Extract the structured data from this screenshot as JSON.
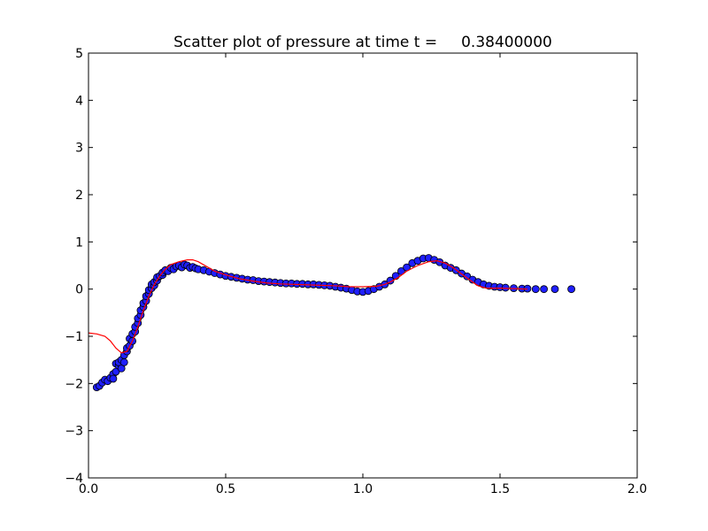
{
  "chart_data": {
    "type": "scatter",
    "title": "Scatter plot of pressure at time t =     0.38400000",
    "xlabel": "",
    "ylabel": "",
    "xlim": [
      0.0,
      2.0
    ],
    "ylim": [
      -4,
      5
    ],
    "x_ticks": [
      0.0,
      0.5,
      1.0,
      1.5,
      2.0
    ],
    "x_tick_labels": [
      "0.0",
      "0.5",
      "1.0",
      "1.5",
      "2.0"
    ],
    "y_ticks": [
      -4,
      -3,
      -2,
      -1,
      0,
      1,
      2,
      3,
      4,
      5
    ],
    "y_tick_labels": [
      "−4",
      "−3",
      "−2",
      "−1",
      "0",
      "1",
      "2",
      "3",
      "4",
      "5"
    ],
    "grid": false,
    "legend": "none",
    "colors": {
      "points_fill": "#1f1fff",
      "points_edge": "#000000",
      "line": "#ff0000"
    },
    "series": [
      {
        "kind": "scatter",
        "points": [
          [
            0.03,
            -2.08
          ],
          [
            0.04,
            -2.05
          ],
          [
            0.05,
            -1.98
          ],
          [
            0.06,
            -1.92
          ],
          [
            0.07,
            -1.95
          ],
          [
            0.08,
            -1.88
          ],
          [
            0.09,
            -1.8
          ],
          [
            0.09,
            -1.9
          ],
          [
            0.1,
            -1.75
          ],
          [
            0.1,
            -1.58
          ],
          [
            0.11,
            -1.62
          ],
          [
            0.11,
            -1.55
          ],
          [
            0.12,
            -1.68
          ],
          [
            0.12,
            -1.5
          ],
          [
            0.13,
            -1.4
          ],
          [
            0.13,
            -1.55
          ],
          [
            0.14,
            -1.32
          ],
          [
            0.14,
            -1.25
          ],
          [
            0.15,
            -1.2
          ],
          [
            0.15,
            -1.05
          ],
          [
            0.16,
            -1.1
          ],
          [
            0.16,
            -0.95
          ],
          [
            0.17,
            -0.9
          ],
          [
            0.17,
            -0.8
          ],
          [
            0.18,
            -0.72
          ],
          [
            0.18,
            -0.62
          ],
          [
            0.19,
            -0.55
          ],
          [
            0.19,
            -0.45
          ],
          [
            0.2,
            -0.38
          ],
          [
            0.2,
            -0.3
          ],
          [
            0.21,
            -0.25
          ],
          [
            0.21,
            -0.15
          ],
          [
            0.22,
            -0.1
          ],
          [
            0.22,
            -0.02
          ],
          [
            0.23,
            0.02
          ],
          [
            0.23,
            0.1
          ],
          [
            0.24,
            0.08
          ],
          [
            0.24,
            0.15
          ],
          [
            0.25,
            0.18
          ],
          [
            0.25,
            0.25
          ],
          [
            0.26,
            0.28
          ],
          [
            0.27,
            0.3
          ],
          [
            0.27,
            0.35
          ],
          [
            0.28,
            0.4
          ],
          [
            0.29,
            0.38
          ],
          [
            0.3,
            0.45
          ],
          [
            0.31,
            0.42
          ],
          [
            0.32,
            0.48
          ],
          [
            0.33,
            0.5
          ],
          [
            0.34,
            0.46
          ],
          [
            0.35,
            0.52
          ],
          [
            0.36,
            0.5
          ],
          [
            0.37,
            0.45
          ],
          [
            0.38,
            0.47
          ],
          [
            0.39,
            0.44
          ],
          [
            0.4,
            0.42
          ],
          [
            0.42,
            0.4
          ],
          [
            0.44,
            0.37
          ],
          [
            0.46,
            0.34
          ],
          [
            0.48,
            0.31
          ],
          [
            0.5,
            0.28
          ],
          [
            0.52,
            0.26
          ],
          [
            0.54,
            0.24
          ],
          [
            0.56,
            0.22
          ],
          [
            0.58,
            0.2
          ],
          [
            0.6,
            0.19
          ],
          [
            0.62,
            0.17
          ],
          [
            0.64,
            0.16
          ],
          [
            0.66,
            0.15
          ],
          [
            0.68,
            0.14
          ],
          [
            0.7,
            0.13
          ],
          [
            0.72,
            0.12
          ],
          [
            0.74,
            0.12
          ],
          [
            0.76,
            0.11
          ],
          [
            0.78,
            0.11
          ],
          [
            0.8,
            0.1
          ],
          [
            0.82,
            0.1
          ],
          [
            0.84,
            0.09
          ],
          [
            0.86,
            0.08
          ],
          [
            0.88,
            0.07
          ],
          [
            0.9,
            0.05
          ],
          [
            0.92,
            0.03
          ],
          [
            0.94,
            0.01
          ],
          [
            0.96,
            -0.02
          ],
          [
            0.98,
            -0.05
          ],
          [
            1.0,
            -0.06
          ],
          [
            1.02,
            -0.04
          ],
          [
            1.04,
            0.0
          ],
          [
            1.06,
            0.05
          ],
          [
            1.08,
            0.1
          ],
          [
            1.1,
            0.18
          ],
          [
            1.12,
            0.28
          ],
          [
            1.14,
            0.38
          ],
          [
            1.16,
            0.46
          ],
          [
            1.18,
            0.55
          ],
          [
            1.2,
            0.6
          ],
          [
            1.22,
            0.65
          ],
          [
            1.24,
            0.66
          ],
          [
            1.26,
            0.62
          ],
          [
            1.28,
            0.57
          ],
          [
            1.3,
            0.5
          ],
          [
            1.32,
            0.45
          ],
          [
            1.34,
            0.4
          ],
          [
            1.36,
            0.33
          ],
          [
            1.38,
            0.27
          ],
          [
            1.4,
            0.2
          ],
          [
            1.42,
            0.15
          ],
          [
            1.44,
            0.1
          ],
          [
            1.46,
            0.07
          ],
          [
            1.48,
            0.05
          ],
          [
            1.5,
            0.04
          ],
          [
            1.52,
            0.03
          ],
          [
            1.55,
            0.02
          ],
          [
            1.58,
            0.01
          ],
          [
            1.6,
            0.01
          ],
          [
            1.63,
            0.0
          ],
          [
            1.66,
            0.0
          ],
          [
            1.7,
            0.0
          ],
          [
            1.76,
            0.0
          ]
        ]
      },
      {
        "kind": "line",
        "points": [
          [
            0.0,
            -0.93
          ],
          [
            0.03,
            -0.95
          ],
          [
            0.06,
            -1.0
          ],
          [
            0.08,
            -1.1
          ],
          [
            0.1,
            -1.25
          ],
          [
            0.12,
            -1.35
          ],
          [
            0.14,
            -1.32
          ],
          [
            0.16,
            -1.1
          ],
          [
            0.18,
            -0.8
          ],
          [
            0.2,
            -0.45
          ],
          [
            0.22,
            -0.15
          ],
          [
            0.24,
            0.1
          ],
          [
            0.26,
            0.28
          ],
          [
            0.28,
            0.42
          ],
          [
            0.3,
            0.52
          ],
          [
            0.33,
            0.58
          ],
          [
            0.36,
            0.62
          ],
          [
            0.38,
            0.62
          ],
          [
            0.4,
            0.58
          ],
          [
            0.43,
            0.48
          ],
          [
            0.46,
            0.38
          ],
          [
            0.5,
            0.3
          ],
          [
            0.55,
            0.22
          ],
          [
            0.6,
            0.17
          ],
          [
            0.65,
            0.13
          ],
          [
            0.7,
            0.11
          ],
          [
            0.8,
            0.09
          ],
          [
            0.9,
            0.07
          ],
          [
            0.95,
            0.05
          ],
          [
            1.0,
            0.05
          ],
          [
            1.05,
            0.06
          ],
          [
            1.08,
            0.1
          ],
          [
            1.1,
            0.15
          ],
          [
            1.13,
            0.25
          ],
          [
            1.16,
            0.38
          ],
          [
            1.2,
            0.5
          ],
          [
            1.24,
            0.58
          ],
          [
            1.27,
            0.6
          ],
          [
            1.3,
            0.55
          ],
          [
            1.33,
            0.45
          ],
          [
            1.36,
            0.32
          ],
          [
            1.4,
            0.15
          ],
          [
            1.42,
            0.07
          ],
          [
            1.45,
            0.02
          ],
          [
            1.5,
            0.02
          ],
          [
            1.6,
            0.0
          ]
        ]
      }
    ]
  }
}
